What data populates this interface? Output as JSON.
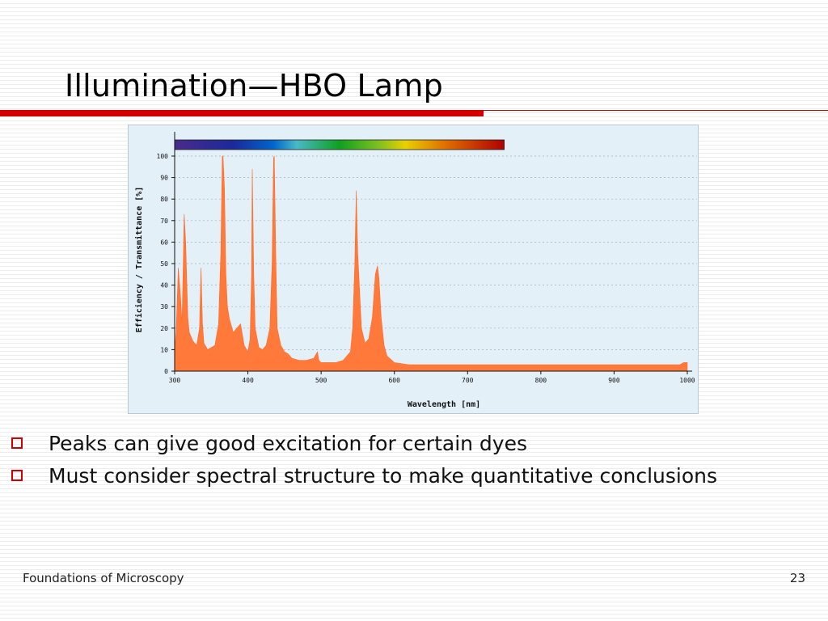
{
  "slide": {
    "title": "Illumination—HBO Lamp",
    "accent_color": "#d40000",
    "bullets": [
      "Peaks can give good excitation for certain dyes",
      "Must consider spectral structure to make quantitative conclusions"
    ],
    "bullet_icon": "hollow-square-icon",
    "footer_left": "Foundations of Microscopy",
    "footer_right": "23"
  },
  "chart_data": {
    "type": "area",
    "title": "",
    "xlabel": "Wavelength [nm]",
    "ylabel": "Efficiency / Transmittance [%]",
    "xlim": [
      300,
      1000
    ],
    "ylim": [
      0,
      100
    ],
    "x_ticks": [
      "300",
      "400",
      "500",
      "600",
      "700",
      "800",
      "900",
      "1000"
    ],
    "y_ticks": [
      "0",
      "10",
      "20",
      "30",
      "40",
      "50",
      "60",
      "70",
      "80",
      "90",
      "100"
    ],
    "grid": true,
    "fill_color": "#ff7a3a",
    "spectrum_bar": {
      "from": 300,
      "to": 750
    },
    "series": [
      {
        "x": [
          300,
          302,
          305,
          308,
          310,
          312,
          313,
          315,
          318,
          320,
          325,
          330,
          334,
          336,
          338,
          340,
          345,
          350,
          355,
          360,
          363,
          365,
          366,
          368,
          370,
          372,
          375,
          380,
          385,
          390,
          395,
          400,
          403,
          405,
          406,
          408,
          410,
          415,
          420,
          425,
          430,
          433,
          435,
          436,
          438,
          440,
          445,
          450,
          455,
          460,
          470,
          480,
          490,
          495,
          497,
          500,
          510,
          520,
          530,
          540,
          543,
          546,
          548,
          550,
          555,
          560,
          565,
          570,
          574,
          577,
          579,
          582,
          586,
          590,
          600,
          620,
          650,
          700,
          750,
          800,
          850,
          900,
          950,
          990,
          995,
          1000
        ],
        "y": [
          10,
          18,
          48,
          35,
          22,
          55,
          73,
          60,
          25,
          18,
          14,
          12,
          20,
          48,
          22,
          13,
          10,
          11,
          12,
          22,
          55,
          100,
          100,
          85,
          45,
          30,
          24,
          18,
          20,
          22,
          12,
          9,
          15,
          45,
          94,
          45,
          20,
          11,
          10,
          12,
          20,
          50,
          99,
          100,
          55,
          20,
          12,
          9,
          8,
          6,
          5,
          5,
          6,
          9,
          5,
          4,
          4,
          4,
          5,
          9,
          20,
          50,
          84,
          55,
          20,
          13,
          15,
          25,
          45,
          49,
          43,
          25,
          12,
          7,
          4,
          3,
          3,
          3,
          3,
          3,
          3,
          3,
          3,
          3,
          4,
          4
        ]
      }
    ]
  }
}
